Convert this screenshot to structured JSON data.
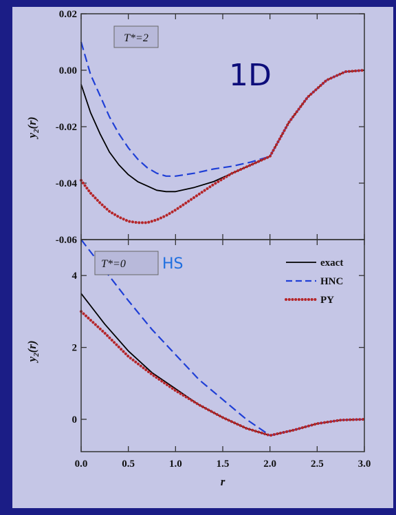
{
  "figure": {
    "big_label": "1D",
    "hs_label": "HS",
    "background_color": "#1b1d86",
    "plot_background": "#c5c6e6"
  },
  "chart_data": [
    {
      "type": "line",
      "panel": "top",
      "annotation": "T*=2",
      "xlabel": "r",
      "ylabel": "y2(r)",
      "xlim": [
        0.0,
        3.0
      ],
      "ylim": [
        -0.06,
        0.02
      ],
      "yticks": [
        -0.06,
        -0.04,
        -0.02,
        0.0,
        0.02
      ],
      "ytick_labels": [
        "-0.06",
        "-0.04",
        "-0.02",
        "0.00",
        "0.02"
      ],
      "series": [
        {
          "name": "exact",
          "color": "#000000",
          "style": "solid",
          "x": [
            0.0,
            0.1,
            0.2,
            0.3,
            0.4,
            0.5,
            0.6,
            0.7,
            0.8,
            0.9,
            1.0,
            1.2,
            1.4,
            1.6,
            1.8,
            2.0,
            2.2,
            2.4,
            2.6,
            2.8,
            3.0
          ],
          "y": [
            -0.005,
            -0.015,
            -0.0225,
            -0.029,
            -0.0335,
            -0.037,
            -0.0395,
            -0.041,
            -0.0425,
            -0.043,
            -0.043,
            -0.0415,
            -0.0395,
            -0.0365,
            -0.0335,
            -0.0305,
            -0.0185,
            -0.0095,
            -0.0035,
            -0.0005,
            0.0
          ]
        },
        {
          "name": "HNC",
          "color": "#1f3fd6",
          "style": "dashed",
          "x": [
            0.0,
            0.1,
            0.2,
            0.3,
            0.4,
            0.5,
            0.6,
            0.7,
            0.8,
            0.9,
            1.0,
            1.2,
            1.4,
            1.6,
            1.8,
            2.0,
            2.2,
            2.4,
            2.6,
            2.8,
            3.0
          ],
          "y": [
            0.01,
            -0.0015,
            -0.009,
            -0.0165,
            -0.0225,
            -0.0275,
            -0.0315,
            -0.0345,
            -0.0365,
            -0.0375,
            -0.0375,
            -0.0365,
            -0.035,
            -0.034,
            -0.0325,
            -0.0305,
            -0.0185,
            -0.0095,
            -0.0035,
            -0.0005,
            0.0
          ]
        },
        {
          "name": "PY",
          "color": "#b5262a",
          "style": "dotted",
          "x": [
            0.0,
            0.1,
            0.2,
            0.3,
            0.4,
            0.5,
            0.6,
            0.7,
            0.8,
            0.9,
            1.0,
            1.2,
            1.4,
            1.6,
            1.8,
            2.0,
            2.2,
            2.4,
            2.6,
            2.8,
            3.0
          ],
          "y": [
            -0.039,
            -0.0435,
            -0.047,
            -0.05,
            -0.052,
            -0.0535,
            -0.054,
            -0.054,
            -0.053,
            -0.0515,
            -0.0495,
            -0.045,
            -0.0405,
            -0.0365,
            -0.0335,
            -0.0305,
            -0.0185,
            -0.0095,
            -0.0035,
            -0.0005,
            0.0
          ]
        }
      ]
    },
    {
      "type": "line",
      "panel": "bottom",
      "annotation": "T*=0",
      "xlabel": "r",
      "ylabel": "y2(r)",
      "xlim": [
        0.0,
        3.0
      ],
      "ylim": [
        -0.9,
        5.0
      ],
      "yticks": [
        0,
        2,
        4
      ],
      "ytick_labels": [
        "0",
        "2",
        "4"
      ],
      "xticks": [
        0.0,
        0.5,
        1.0,
        1.5,
        2.0,
        2.5,
        3.0
      ],
      "xtick_labels": [
        "0.0",
        "0.5",
        "1.0",
        "1.5",
        "2.0",
        "2.5",
        "3.0"
      ],
      "legend": {
        "position": "top-right",
        "entries": [
          "exact",
          "HNC",
          "PY"
        ]
      },
      "series": [
        {
          "name": "exact",
          "color": "#000000",
          "style": "solid",
          "x": [
            0.0,
            0.25,
            0.5,
            0.75,
            1.0,
            1.25,
            1.5,
            1.75,
            2.0,
            2.25,
            2.5,
            2.75,
            3.0
          ],
          "y": [
            3.5,
            2.65,
            1.9,
            1.3,
            0.85,
            0.4,
            0.05,
            -0.25,
            -0.45,
            -0.3,
            -0.12,
            -0.02,
            0.0
          ]
        },
        {
          "name": "HNC",
          "color": "#1f3fd6",
          "style": "dashed",
          "x": [
            0.0,
            0.25,
            0.5,
            0.75,
            1.0,
            1.25,
            1.5,
            1.75,
            2.0,
            2.25,
            2.5,
            2.75,
            3.0
          ],
          "y": [
            5.0,
            4.15,
            3.3,
            2.5,
            1.8,
            1.1,
            0.55,
            0.0,
            -0.45,
            -0.3,
            -0.12,
            -0.02,
            0.0
          ]
        },
        {
          "name": "PY",
          "color": "#b5262a",
          "style": "dotted",
          "x": [
            0.0,
            0.25,
            0.5,
            0.75,
            1.0,
            1.25,
            1.5,
            1.75,
            2.0,
            2.25,
            2.5,
            2.75,
            3.0
          ],
          "y": [
            3.0,
            2.4,
            1.75,
            1.25,
            0.8,
            0.4,
            0.05,
            -0.25,
            -0.45,
            -0.3,
            -0.12,
            -0.02,
            0.0
          ]
        }
      ]
    }
  ]
}
